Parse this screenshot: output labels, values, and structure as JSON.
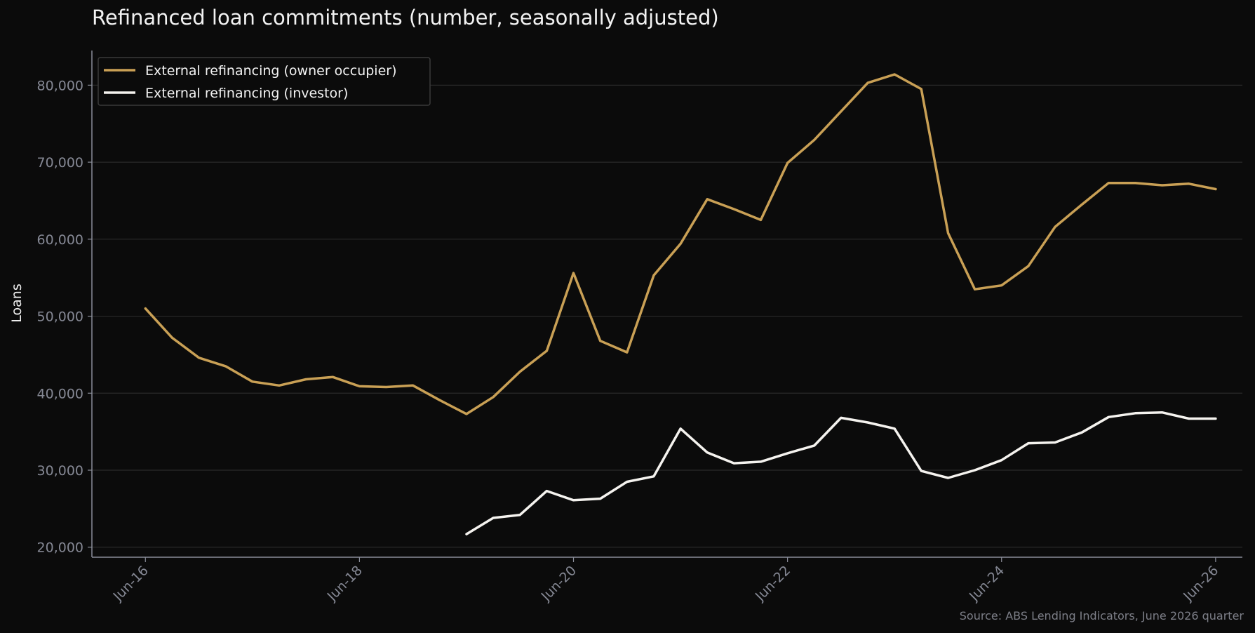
{
  "chart_data": {
    "type": "line",
    "title": "Refinanced loan commitments (number, seasonally adjusted)",
    "ylabel": "Loans",
    "xlabel": "",
    "source": "Source: ABS Lending Indicators, June 2026 quarter",
    "ylim": [
      18700,
      84500
    ],
    "y_ticks": [
      20000,
      30000,
      40000,
      50000,
      60000,
      70000,
      80000
    ],
    "y_tick_labels": [
      "20,000",
      "30,000",
      "40,000",
      "50,000",
      "60,000",
      "70,000",
      "80,000"
    ],
    "x_ticks": [
      "2016-06",
      "2018-06",
      "2020-06",
      "2022-06",
      "2024-06",
      "2026-06"
    ],
    "x_tick_labels": [
      "Jun-16",
      "Jun-18",
      "Jun-20",
      "Jun-22",
      "Jun-24",
      "Jun-26"
    ],
    "xlim": [
      "2015-12",
      "2026-09"
    ],
    "grid": "horizontal",
    "legend_position": "top-left",
    "series": [
      {
        "name": "External refinancing (owner occupier)",
        "color": "#c9a055",
        "x": [
          "2016-06",
          "2016-09",
          "2016-12",
          "2017-03",
          "2017-06",
          "2017-09",
          "2017-12",
          "2018-03",
          "2018-06",
          "2018-09",
          "2018-12",
          "2019-03",
          "2019-06",
          "2019-09",
          "2019-12",
          "2020-03",
          "2020-06",
          "2020-09",
          "2020-12",
          "2021-03",
          "2021-06",
          "2021-09",
          "2021-12",
          "2022-03",
          "2022-06",
          "2022-09",
          "2022-12",
          "2023-03",
          "2023-06",
          "2023-09",
          "2023-12",
          "2024-03",
          "2024-06",
          "2024-09",
          "2024-12",
          "2025-03",
          "2025-06",
          "2025-09",
          "2025-12",
          "2026-03",
          "2026-06"
        ],
        "values": [
          51000,
          47200,
          44600,
          43500,
          41500,
          41000,
          41800,
          42100,
          40900,
          40800,
          41000,
          39100,
          37300,
          39500,
          42800,
          45500,
          55600,
          46800,
          45300,
          55300,
          59400,
          65200,
          63900,
          62500,
          69900,
          72900,
          76600,
          80300,
          81400,
          79500,
          60800,
          53500,
          54000,
          56500,
          61600,
          64500,
          67300,
          67300,
          67000,
          67200,
          66500
        ]
      },
      {
        "name": "External refinancing (investor)",
        "color": "#f5f3ef",
        "x": [
          "2019-06",
          "2019-09",
          "2019-12",
          "2020-03",
          "2020-06",
          "2020-09",
          "2020-12",
          "2021-03",
          "2021-06",
          "2021-09",
          "2021-12",
          "2022-03",
          "2022-06",
          "2022-09",
          "2022-12",
          "2023-03",
          "2023-06",
          "2023-09",
          "2023-12",
          "2024-03",
          "2024-06",
          "2024-09",
          "2024-12",
          "2025-03",
          "2025-06",
          "2025-09",
          "2025-12",
          "2026-03",
          "2026-06"
        ],
        "values": [
          21700,
          23800,
          24200,
          27300,
          26100,
          26300,
          28500,
          29200,
          35400,
          32300,
          30900,
          31100,
          32200,
          33200,
          36800,
          36200,
          35400,
          29900,
          29000,
          30000,
          31300,
          33500,
          33600,
          34900,
          36900,
          37400,
          37500,
          36700,
          36700
        ]
      }
    ]
  }
}
